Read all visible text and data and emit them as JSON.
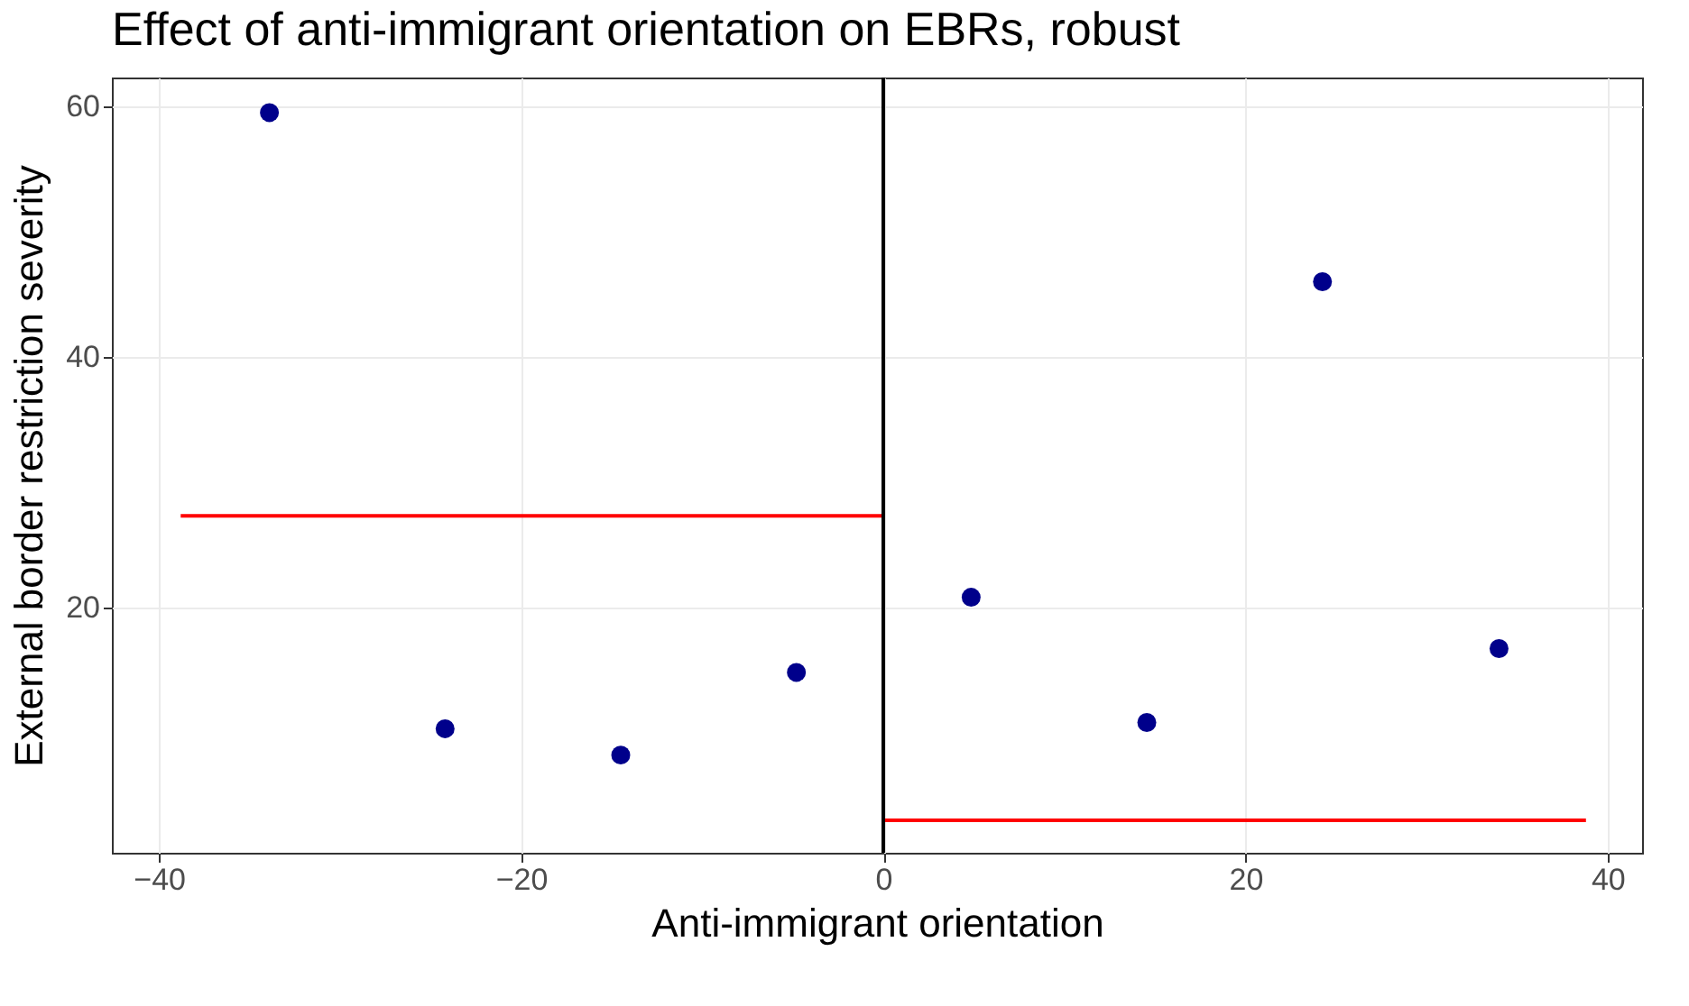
{
  "chart_data": {
    "type": "scatter",
    "title": "Effect of anti-immigrant orientation on EBRs, robust",
    "xlabel": "Anti-immigrant orientation",
    "ylabel": "External border restriction severity",
    "xlim": [
      -42.6,
      41.9
    ],
    "ylim": [
      0.4,
      62.3
    ],
    "xticks": [
      -40,
      -20,
      0,
      20,
      40
    ],
    "yticks": [
      20,
      40,
      60
    ],
    "grid": true,
    "series": [
      {
        "color": "#00008b",
        "marker": "circle",
        "x": [
          -33.9,
          -24.2,
          -14.5,
          -4.8,
          4.85,
          14.55,
          24.25,
          34.0
        ],
        "values": [
          59.5,
          10.3,
          8.2,
          14.8,
          20.8,
          10.8,
          46.0,
          16.7
        ]
      },
      {
        "type": "line",
        "marker": "none",
        "color": "#ff0000",
        "x": [
          -38.8,
          0
        ],
        "values": [
          27.3,
          27.3
        ]
      },
      {
        "type": "line",
        "marker": "none",
        "color": "#ff0000",
        "x": [
          0,
          38.8
        ],
        "values": [
          3.0,
          3.0
        ]
      }
    ],
    "ref_lines": [
      {
        "axis": "x",
        "value": 0,
        "color": "#000000"
      }
    ]
  }
}
